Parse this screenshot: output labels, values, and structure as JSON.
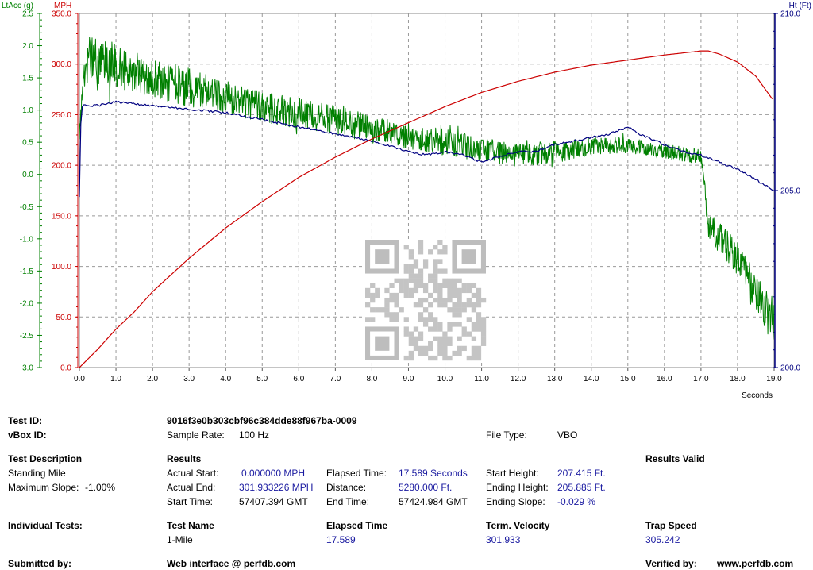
{
  "chart_data": {
    "type": "line",
    "x_axis": {
      "label": "Seconds",
      "range": [
        0,
        19
      ],
      "ticks": [
        "0.0",
        "1.0",
        "2.0",
        "3.0",
        "4.0",
        "5.0",
        "6.0",
        "7.0",
        "8.0",
        "9.0",
        "10.0",
        "11.0",
        "12.0",
        "13.0",
        "14.0",
        "15.0",
        "16.0",
        "17.0",
        "18.0",
        "19.0"
      ]
    },
    "y_left_outer": {
      "label": "LtAcc (g)",
      "color": "#008000",
      "range": [
        -3,
        2.5
      ],
      "ticks": [
        "2.5",
        "2.0",
        "1.5",
        "1.0",
        "0.5",
        "0.0",
        "-0.5",
        "-1.0",
        "-1.5",
        "-2.0",
        "-2.5",
        "-3.0"
      ]
    },
    "y_left_inner": {
      "label": "MPH",
      "color": "#cc0000",
      "range": [
        0,
        350
      ],
      "ticks": [
        "350.0",
        "300.0",
        "250.0",
        "200.0",
        "150.0",
        "100.0",
        "50.0",
        "0.0"
      ]
    },
    "y_right": {
      "label": "Ht (Ft)",
      "color": "#000080",
      "range": [
        200,
        210
      ],
      "ticks": [
        "210.0",
        "205.0",
        "200.0"
      ]
    },
    "grid": true,
    "series": [
      {
        "name": "MPH",
        "axis": "y_left_inner",
        "color": "#cc0000",
        "x": [
          0,
          0.5,
          1,
          1.5,
          2,
          3,
          4,
          5,
          6,
          7,
          8,
          9,
          10,
          11,
          12,
          13,
          14,
          15,
          16,
          17,
          17.2,
          17.5,
          18,
          18.5,
          19
        ],
        "y": [
          0,
          18,
          38,
          55,
          75,
          108,
          138,
          164,
          188,
          208,
          226,
          242,
          258,
          272,
          283,
          292,
          299,
          304,
          309,
          313,
          313,
          310,
          302,
          288,
          263
        ]
      },
      {
        "name": "Ht (Ft)",
        "axis": "y_right",
        "color": "#000080",
        "x": [
          0,
          0.05,
          0.5,
          1,
          2,
          3,
          4,
          5,
          6,
          7,
          8,
          9,
          9.5,
          10,
          10.5,
          11,
          11.3,
          12,
          12.5,
          13,
          13.5,
          14,
          14.5,
          15,
          15.3,
          16,
          16.5,
          17,
          17.5,
          18,
          18.5,
          19
        ],
        "y": [
          204.8,
          207.4,
          207.4,
          207.5,
          207.4,
          207.3,
          207.2,
          207.0,
          206.8,
          206.6,
          206.4,
          206.1,
          206.0,
          206.1,
          206.0,
          205.8,
          205.9,
          206.1,
          206.1,
          206.3,
          206.4,
          206.5,
          206.6,
          206.8,
          206.6,
          206.3,
          206.1,
          206.0,
          205.8,
          205.6,
          205.3,
          205.0
        ]
      },
      {
        "name": "LtAcc (g)",
        "axis": "y_left_outer",
        "color": "#008000",
        "noisy": true,
        "x": [
          0,
          0.1,
          0.25,
          0.5,
          1,
          2,
          3,
          4,
          5,
          6,
          7,
          8,
          9,
          10,
          11,
          12,
          13,
          14,
          15,
          16,
          16.8,
          17.0,
          17.2,
          17.5,
          18,
          18.5,
          19
        ],
        "y": [
          0.6,
          1.4,
          1.8,
          1.75,
          1.7,
          1.5,
          1.35,
          1.2,
          1.05,
          0.95,
          0.85,
          0.7,
          0.6,
          0.5,
          0.4,
          0.3,
          0.35,
          0.45,
          0.45,
          0.35,
          0.3,
          0.3,
          -0.8,
          -1.0,
          -1.3,
          -1.8,
          -2.3
        ],
        "noise": [
          0.1,
          0.25,
          0.35,
          0.35,
          0.35,
          0.3,
          0.3,
          0.25,
          0.25,
          0.25,
          0.22,
          0.22,
          0.2,
          0.2,
          0.2,
          0.18,
          0.18,
          0.15,
          0.12,
          0.12,
          0.12,
          0.12,
          0.22,
          0.25,
          0.28,
          0.3,
          0.35
        ]
      }
    ]
  },
  "summary": {
    "test_id_label": "Test ID:",
    "test_id_value": "9016f3e0b303cbf96c384dde88f967ba-0009",
    "vbox_id_label": "vBox ID:",
    "sample_rate_label": "Sample Rate:",
    "sample_rate_value": "100 Hz",
    "file_type_label": "File Type:",
    "file_type_value": "VBO",
    "test_description_heading": "Test Description",
    "test_description_name": "Standing Mile",
    "max_slope_label": "Maximum Slope:",
    "max_slope_value": "-1.00%",
    "results_heading": "Results",
    "results_valid_heading": "Results Valid",
    "actual_start_label": "Actual Start:",
    "actual_start_value": "0.000000 MPH",
    "actual_end_label": "Actual End:",
    "actual_end_value": "301.933226 MPH",
    "start_time_label": "Start Time:",
    "start_time_value": "57407.394 GMT",
    "elapsed_time_label": "Elapsed Time:",
    "elapsed_time_value": "17.589 Seconds",
    "distance_label": "Distance:",
    "distance_value": "5280.000 Ft.",
    "end_time_label": "End Time:",
    "end_time_value": "57424.984 GMT",
    "start_height_label": "Start Height:",
    "start_height_value": "207.415 Ft.",
    "ending_height_label": "Ending Height:",
    "ending_height_value": "205.885 Ft.",
    "ending_slope_label": "Ending Slope:",
    "ending_slope_value": "-0.029 %",
    "individual_tests_heading": "Individual Tests:",
    "col_test_name": "Test Name",
    "col_elapsed_time": "Elapsed Time",
    "col_term_velocity": "Term. Velocity",
    "col_trap_speed": "Trap Speed",
    "row_test_name": "1-Mile",
    "row_elapsed_time": "17.589",
    "row_term_velocity": "301.933",
    "row_trap_speed": "305.242",
    "submitted_by_label": "Submitted by:",
    "web_interface": "Web interface @ perfdb.com",
    "verified_by_label": "Verified by:",
    "verified_by_value": "www.perfdb.com"
  }
}
